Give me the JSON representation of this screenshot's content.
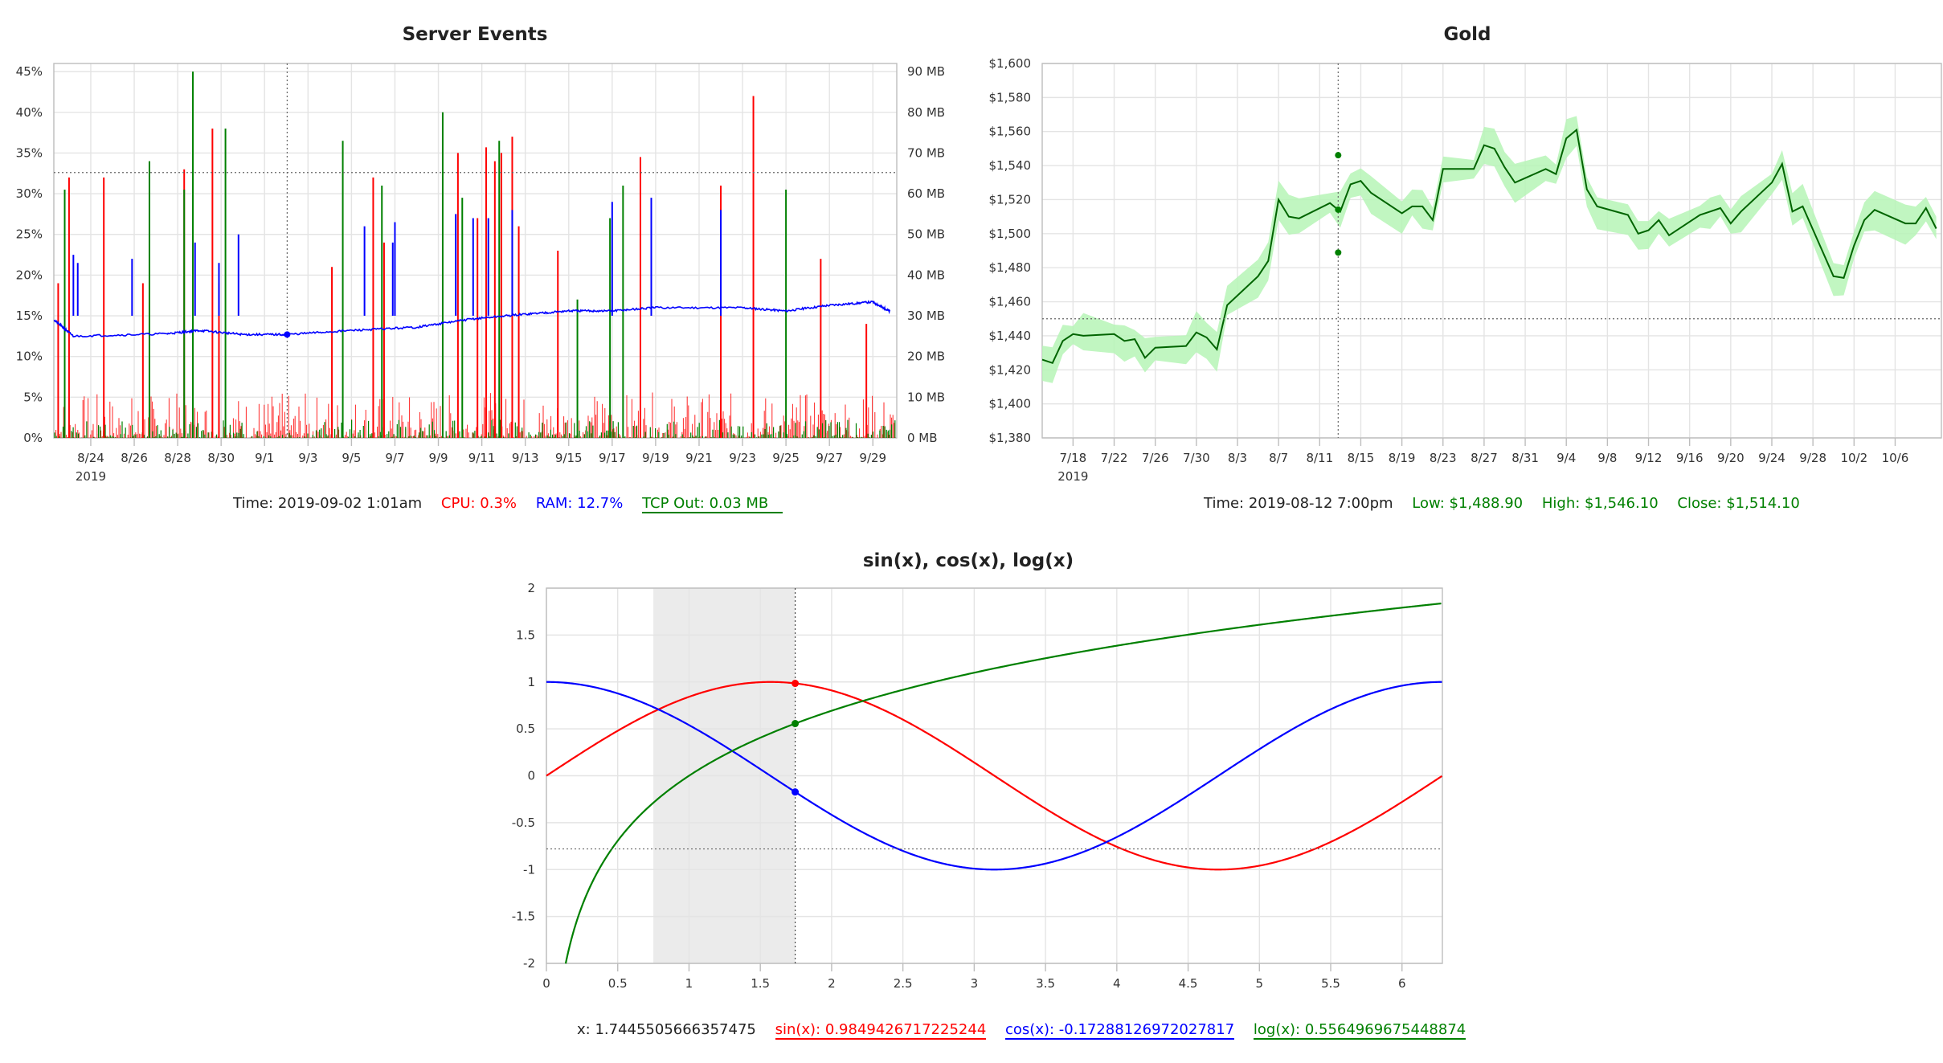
{
  "chart_data": [
    {
      "id": "server",
      "type": "line",
      "title": "Server Events",
      "x_tick_labels": [
        "8/24",
        "8/26",
        "8/28",
        "8/30",
        "9/1",
        "9/3",
        "9/5",
        "9/7",
        "9/9",
        "9/11",
        "9/13",
        "9/15",
        "9/17",
        "9/19",
        "9/21",
        "9/23",
        "9/25",
        "9/27",
        "9/29"
      ],
      "x_tick_days": [
        23,
        25,
        27,
        29,
        31,
        33,
        35,
        37,
        39,
        41,
        43,
        45,
        47,
        49,
        51,
        53,
        55,
        57,
        59
      ],
      "x_year_label": "2019",
      "xlim_days": [
        21.3,
        60.1
      ],
      "left_axis": {
        "ticks": [
          "0%",
          "5%",
          "10%",
          "15%",
          "20%",
          "25%",
          "30%",
          "35%",
          "40%",
          "45%"
        ],
        "ylim": [
          0,
          46
        ]
      },
      "right_axis": {
        "ticks": [
          "0 MB",
          "10 MB",
          "20 MB",
          "30 MB",
          "40 MB",
          "50 MB",
          "60 MB",
          "70 MB",
          "80 MB",
          "90 MB"
        ],
        "ylim": [
          0,
          92
        ]
      },
      "cursor": {
        "day": 32.04,
        "y_percent": 32.6
      },
      "series": [
        {
          "name": "CPU",
          "color": "#ff0000",
          "unit": "%",
          "spikes": [
            [
              21.5,
              19
            ],
            [
              22.0,
              32
            ],
            [
              23.6,
              32
            ],
            [
              25.4,
              19
            ],
            [
              27.3,
              33
            ],
            [
              28.6,
              38
            ],
            [
              28.9,
              19
            ],
            [
              34.1,
              21
            ],
            [
              36.0,
              32
            ],
            [
              36.5,
              24
            ],
            [
              39.9,
              35
            ],
            [
              40.8,
              27
            ],
            [
              41.2,
              35.7
            ],
            [
              41.6,
              34
            ],
            [
              41.9,
              35
            ],
            [
              42.4,
              37
            ],
            [
              42.7,
              26
            ],
            [
              44.5,
              23
            ],
            [
              48.3,
              34.5
            ],
            [
              52.0,
              31
            ],
            [
              53.5,
              42
            ],
            [
              56.6,
              22
            ],
            [
              58.7,
              14
            ]
          ]
        },
        {
          "name": "RAM",
          "color": "#0000ff",
          "unit": "%",
          "baseline": [
            [
              21.3,
              14.5
            ],
            [
              22.2,
              12.5
            ],
            [
              26.5,
              12.8
            ],
            [
              28.0,
              13.2
            ],
            [
              30.0,
              12.7
            ],
            [
              32.0,
              12.7
            ],
            [
              35.0,
              13.2
            ],
            [
              38.0,
              13.6
            ],
            [
              40.5,
              14.6
            ],
            [
              43.0,
              15.2
            ],
            [
              45.0,
              15.6
            ],
            [
              47.0,
              15.6
            ],
            [
              49.0,
              16.0
            ],
            [
              53.0,
              16.0
            ],
            [
              55.0,
              15.6
            ],
            [
              57.0,
              16.3
            ],
            [
              59.0,
              16.7
            ],
            [
              59.8,
              15.5
            ]
          ],
          "spikes": [
            [
              22.2,
              22.5
            ],
            [
              22.4,
              21.5
            ],
            [
              24.9,
              22
            ],
            [
              27.8,
              24
            ],
            [
              28.9,
              21.5
            ],
            [
              29.8,
              25
            ],
            [
              35.6,
              26
            ],
            [
              36.9,
              24
            ],
            [
              37.0,
              26.5
            ],
            [
              39.8,
              27.5
            ],
            [
              40.6,
              27
            ],
            [
              41.3,
              27
            ],
            [
              42.4,
              28
            ],
            [
              47.0,
              29
            ],
            [
              48.8,
              29.5
            ],
            [
              52.0,
              28
            ]
          ]
        },
        {
          "name": "TCP Out",
          "color": "#008000",
          "unit": "MB",
          "spikes": [
            [
              21.8,
              61
            ],
            [
              25.7,
              68
            ],
            [
              27.3,
              61
            ],
            [
              27.7,
              90
            ],
            [
              29.2,
              76
            ],
            [
              34.6,
              73
            ],
            [
              36.4,
              62
            ],
            [
              39.2,
              80
            ],
            [
              40.1,
              59
            ],
            [
              41.8,
              73
            ],
            [
              45.4,
              34
            ],
            [
              46.9,
              54
            ],
            [
              47.5,
              62
            ],
            [
              55.0,
              61
            ]
          ]
        }
      ]
    },
    {
      "id": "gold",
      "type": "line",
      "title": "Gold",
      "x_tick_labels": [
        "7/18",
        "7/22",
        "7/26",
        "7/30",
        "8/3",
        "8/7",
        "8/11",
        "8/15",
        "8/19",
        "8/23",
        "8/27",
        "8/31",
        "9/4",
        "9/8",
        "9/12",
        "9/16",
        "9/20",
        "9/24",
        "9/28",
        "10/2",
        "10/6"
      ],
      "x_tick_days": [
        18,
        22,
        26,
        30,
        34,
        38,
        42,
        46,
        50,
        54,
        58,
        62,
        66,
        70,
        74,
        78,
        82,
        86,
        90,
        94,
        98
      ],
      "x_year_label": "2019",
      "xlim_days": [
        15.0,
        102.5
      ],
      "y_ticks": [
        "$1,380",
        "$1,400",
        "$1,420",
        "$1,440",
        "$1,460",
        "$1,480",
        "$1,500",
        "$1,520",
        "$1,540",
        "$1,560",
        "$1,580",
        "$1,600"
      ],
      "ylim": [
        1380,
        1600
      ],
      "cursor": {
        "day": 43.8,
        "price": 1450
      },
      "close": [
        [
          15,
          1426
        ],
        [
          16,
          1424
        ],
        [
          17,
          1437
        ],
        [
          18,
          1441
        ],
        [
          19,
          1440
        ],
        [
          22,
          1441
        ],
        [
          23,
          1437
        ],
        [
          24,
          1438
        ],
        [
          25,
          1427
        ],
        [
          26,
          1433
        ],
        [
          29,
          1434
        ],
        [
          30,
          1442
        ],
        [
          31,
          1439
        ],
        [
          32,
          1432
        ],
        [
          33,
          1458
        ],
        [
          36,
          1475
        ],
        [
          37,
          1484
        ],
        [
          38,
          1520
        ],
        [
          39,
          1510
        ],
        [
          40,
          1509
        ],
        [
          43,
          1518
        ],
        [
          44,
          1513
        ],
        [
          45,
          1529
        ],
        [
          46,
          1531
        ],
        [
          47,
          1524
        ],
        [
          50,
          1512
        ],
        [
          51,
          1516
        ],
        [
          52,
          1516
        ],
        [
          53,
          1508
        ],
        [
          54,
          1538
        ],
        [
          57,
          1538
        ],
        [
          58,
          1552
        ],
        [
          59,
          1550
        ],
        [
          60,
          1539
        ],
        [
          61,
          1530
        ],
        [
          64,
          1538
        ],
        [
          65,
          1535
        ],
        [
          66,
          1556
        ],
        [
          67,
          1561
        ],
        [
          68,
          1526
        ],
        [
          69,
          1516
        ],
        [
          72,
          1511
        ],
        [
          73,
          1500
        ],
        [
          74,
          1502
        ],
        [
          75,
          1508
        ],
        [
          76,
          1499
        ],
        [
          79,
          1511
        ],
        [
          80,
          1513
        ],
        [
          81,
          1515
        ],
        [
          82,
          1506
        ],
        [
          83,
          1513
        ],
        [
          86,
          1530
        ],
        [
          87,
          1541
        ],
        [
          88,
          1513
        ],
        [
          89,
          1516
        ],
        [
          92,
          1475
        ],
        [
          93,
          1474
        ],
        [
          94,
          1493
        ],
        [
          95,
          1508
        ],
        [
          96,
          1514
        ],
        [
          99,
          1506
        ],
        [
          100,
          1506
        ],
        [
          101,
          1515
        ],
        [
          102,
          1503
        ]
      ],
      "band_half_width": 9,
      "cursor_ohlc": {
        "low": 1488.9,
        "high": 1546.1,
        "close": 1514.1
      }
    },
    {
      "id": "trig",
      "type": "line",
      "title": "sin(x), cos(x), log(x)",
      "x_ticks": [
        "0",
        "0.5",
        "1",
        "1.5",
        "2",
        "2.5",
        "3",
        "3.5",
        "4",
        "4.5",
        "5",
        "5.5",
        "6"
      ],
      "xlim": [
        0,
        6.2832
      ],
      "y_ticks": [
        "-2",
        "-1.5",
        "-1",
        "-0.5",
        "0",
        "0.5",
        "1",
        "1.5",
        "2"
      ],
      "ylim": [
        -2,
        2
      ],
      "selection": [
        0.75,
        1.7445505666357475
      ],
      "cursor": {
        "x": 1.7445505666357475,
        "y": -0.78
      },
      "series": [
        {
          "name": "sin(x)",
          "color": "#ff0000"
        },
        {
          "name": "cos(x)",
          "color": "#0000ff"
        },
        {
          "name": "log(x)",
          "color": "#008000"
        }
      ]
    }
  ],
  "legend_server": {
    "time": "Time: 2019-09-02 1:01am",
    "cpu": "CPU: 0.3%",
    "ram": "RAM: 12.7%",
    "tcp": "TCP Out: 0.03 MB"
  },
  "legend_gold": {
    "time": "Time: 2019-08-12 7:00pm",
    "low": "Low: $1,488.90",
    "high": "High: $1,546.10",
    "close": "Close: $1,514.10"
  },
  "legend_trig": {
    "x": "x: 1.7445505666357475",
    "sin": "sin(x): 0.9849426717225244",
    "cos": "cos(x): -0.17288126972027817",
    "log": "log(x): 0.5564969675448874"
  }
}
